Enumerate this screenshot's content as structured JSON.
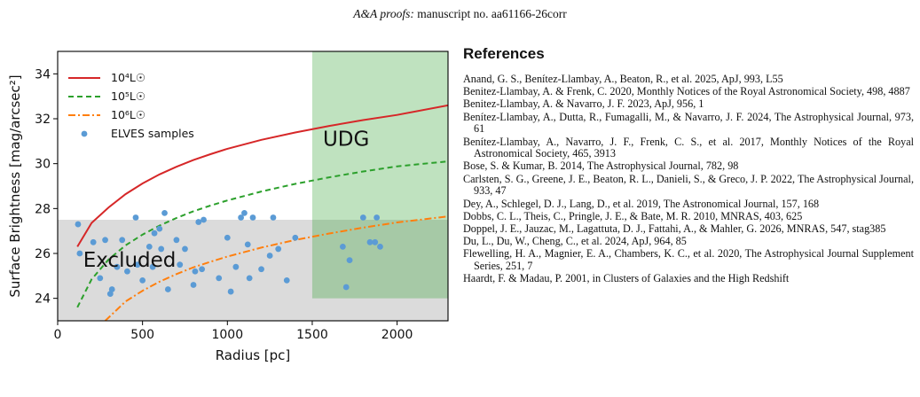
{
  "header": {
    "journal": "A&A proofs:",
    "manuscript": "manuscript no. aa61166-26corr"
  },
  "chart_data": {
    "type": "scatter",
    "xlabel": "Radius [pc]",
    "ylabel": "Surface Brightness [mag/arcsec²]",
    "xlim": [
      0,
      2300
    ],
    "ylim": [
      23,
      35
    ],
    "xticks": [
      "0",
      "500",
      "1000",
      "1500",
      "2000"
    ],
    "yticks": [
      "24",
      "26",
      "28",
      "30",
      "32",
      "34"
    ],
    "regions": [
      {
        "label": "UDG",
        "x": [
          1500,
          2300
        ],
        "y": [
          24,
          35
        ],
        "color": "#2ca02c"
      },
      {
        "label": "Excluded",
        "x": [
          0,
          2300
        ],
        "y": [
          23,
          27.5
        ],
        "color": "#bdbdbd"
      }
    ],
    "legend_position": "top-left",
    "series": [
      {
        "name": "10⁴L☉",
        "style": "solid",
        "color": "#d62728",
        "x": [
          116,
          200,
          300,
          400,
          500,
          600,
          700,
          800,
          900,
          1000,
          1200,
          1400,
          1600,
          1800,
          2000,
          2300
        ],
        "y": [
          26.3,
          27.36,
          28.05,
          28.64,
          29.12,
          29.52,
          29.86,
          30.16,
          30.42,
          30.66,
          31.06,
          31.39,
          31.68,
          31.94,
          32.17,
          32.6
        ]
      },
      {
        "name": "10⁵L☉",
        "style": "dashed",
        "color": "#2ca02c",
        "x": [
          116,
          200,
          300,
          400,
          500,
          600,
          700,
          800,
          900,
          1000,
          1200,
          1400,
          1600,
          1800,
          2000,
          2300
        ],
        "y": [
          23.6,
          24.85,
          25.73,
          26.36,
          26.84,
          27.24,
          27.58,
          27.88,
          28.13,
          28.36,
          28.76,
          29.1,
          29.39,
          29.65,
          29.88,
          30.1
        ]
      },
      {
        "name": "10⁶L☉",
        "style": "dashdot",
        "color": "#ff7f0e",
        "x": [
          280,
          400,
          500,
          600,
          700,
          800,
          900,
          1000,
          1200,
          1400,
          1600,
          1800,
          2000,
          2300
        ],
        "y": [
          23.0,
          23.86,
          24.34,
          24.74,
          25.08,
          25.38,
          25.63,
          25.86,
          26.26,
          26.6,
          26.89,
          27.15,
          27.38,
          27.65
        ]
      },
      {
        "name": "ELVES samples",
        "style": "markers",
        "color": "#5b9bd5",
        "x": [
          120,
          130,
          210,
          250,
          280,
          310,
          320,
          350,
          380,
          410,
          460,
          470,
          500,
          540,
          560,
          570,
          600,
          610,
          630,
          650,
          700,
          720,
          750,
          800,
          810,
          830,
          850,
          860,
          950,
          1000,
          1020,
          1050,
          1080,
          1100,
          1120,
          1130,
          1150,
          1200,
          1250,
          1270,
          1300,
          1350,
          1400,
          1680,
          1700,
          1720,
          1800,
          1840,
          1870,
          1880,
          1900
        ],
        "y": [
          27.3,
          26.0,
          26.5,
          24.9,
          26.6,
          24.2,
          24.4,
          25.4,
          26.6,
          25.2,
          27.6,
          25.5,
          24.8,
          26.3,
          25.4,
          26.9,
          27.1,
          26.2,
          27.8,
          24.4,
          26.6,
          25.5,
          26.2,
          24.6,
          25.2,
          27.4,
          25.3,
          27.5,
          24.9,
          26.7,
          24.3,
          25.4,
          27.6,
          27.8,
          26.4,
          24.9,
          27.6,
          25.3,
          25.9,
          27.6,
          26.2,
          24.8,
          26.7,
          26.3,
          24.5,
          25.7,
          27.6,
          26.5,
          26.5,
          27.6,
          26.3
        ]
      }
    ]
  },
  "references": {
    "title": "References",
    "items": [
      "Anand, G. S., Benítez-Llambay, A., Beaton, R., et al. 2025, ApJ, 993, L55",
      "Benitez-Llambay, A. & Frenk, C. 2020, Monthly Notices of the Royal Astronomical Society, 498, 4887",
      "Benitez-Llambay, A. & Navarro, J. F. 2023, ApJ, 956, 1",
      "Benítez-Llambay, A., Dutta, R., Fumagalli, M., & Navarro, J. F. 2024, The Astrophysical Journal, 973, 61",
      "Benítez-Llambay, A., Navarro, J. F., Frenk, C. S., et al. 2017, Monthly Notices of the Royal Astronomical Society, 465, 3913",
      "Bose, S. & Kumar, B. 2014, The Astrophysical Journal, 782, 98",
      "Carlsten, S. G., Greene, J. E., Beaton, R. L., Danieli, S., & Greco, J. P. 2022, The Astrophysical Journal, 933, 47",
      "Dey, A., Schlegel, D. J., Lang, D., et al. 2019, The Astronomical Journal, 157, 168",
      "Dobbs, C. L., Theis, C., Pringle, J. E., & Bate, M. R. 2010, MNRAS, 403, 625",
      "Doppel, J. E., Jauzac, M., Lagattuta, D. J., Fattahi, A., & Mahler, G. 2026, MNRAS, 547, stag385",
      "Du, L., Du, W., Cheng, C., et al. 2024, ApJ, 964, 85",
      "Flewelling, H. A., Magnier, E. A., Chambers, K. C., et al. 2020, The Astrophysical Journal Supplement Series, 251, 7",
      "Haardt, F. & Madau, P. 2001, in Clusters of Galaxies and the High Redshift"
    ]
  }
}
